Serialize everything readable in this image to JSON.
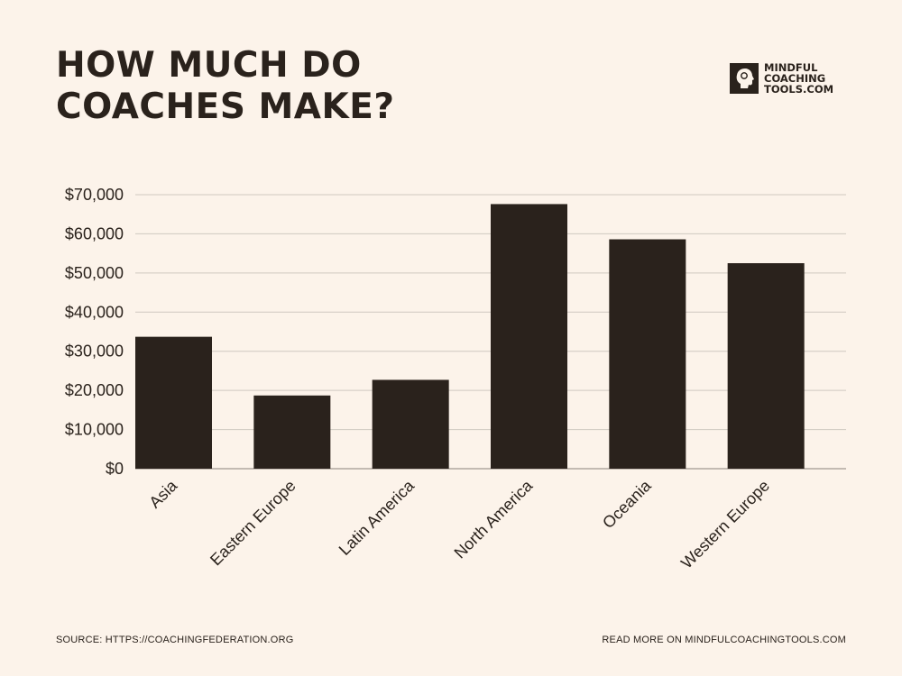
{
  "header": {
    "title_line1": "HOW MUCH DO",
    "title_line2": "COACHES MAKE?"
  },
  "brand": {
    "line1": "MINDFUL",
    "line2": "COACHING",
    "line3": "TOOLS.COM",
    "icon": "head-silhouette-icon"
  },
  "footer": {
    "source": "SOURCE: HTTPS://COACHINGFEDERATION.ORG",
    "read_more": "READ MORE ON MINDFULCOACHINGTOOLS.COM"
  },
  "colors": {
    "background": "#fcf3ea",
    "bar": "#2a221c",
    "grid": "#cfc8c0",
    "text": "#2a221c"
  },
  "chart_data": {
    "type": "bar",
    "title": "HOW MUCH DO COACHES MAKE?",
    "xlabel": "",
    "ylabel": "",
    "categories": [
      "Asia",
      "Eastern Europe",
      "Latin America",
      "North America",
      "Oceania",
      "Western Europe"
    ],
    "values": [
      33700,
      18700,
      22700,
      67600,
      58600,
      52500
    ],
    "ylim": [
      0,
      70000
    ],
    "yticks": [
      0,
      10000,
      20000,
      30000,
      40000,
      50000,
      60000,
      70000
    ],
    "ytick_labels": [
      "$0",
      "$10,000",
      "$20,000",
      "$30,000",
      "$40,000",
      "$50,000",
      "$60,000",
      "$70,000"
    ],
    "grid": true,
    "legend": "none"
  }
}
